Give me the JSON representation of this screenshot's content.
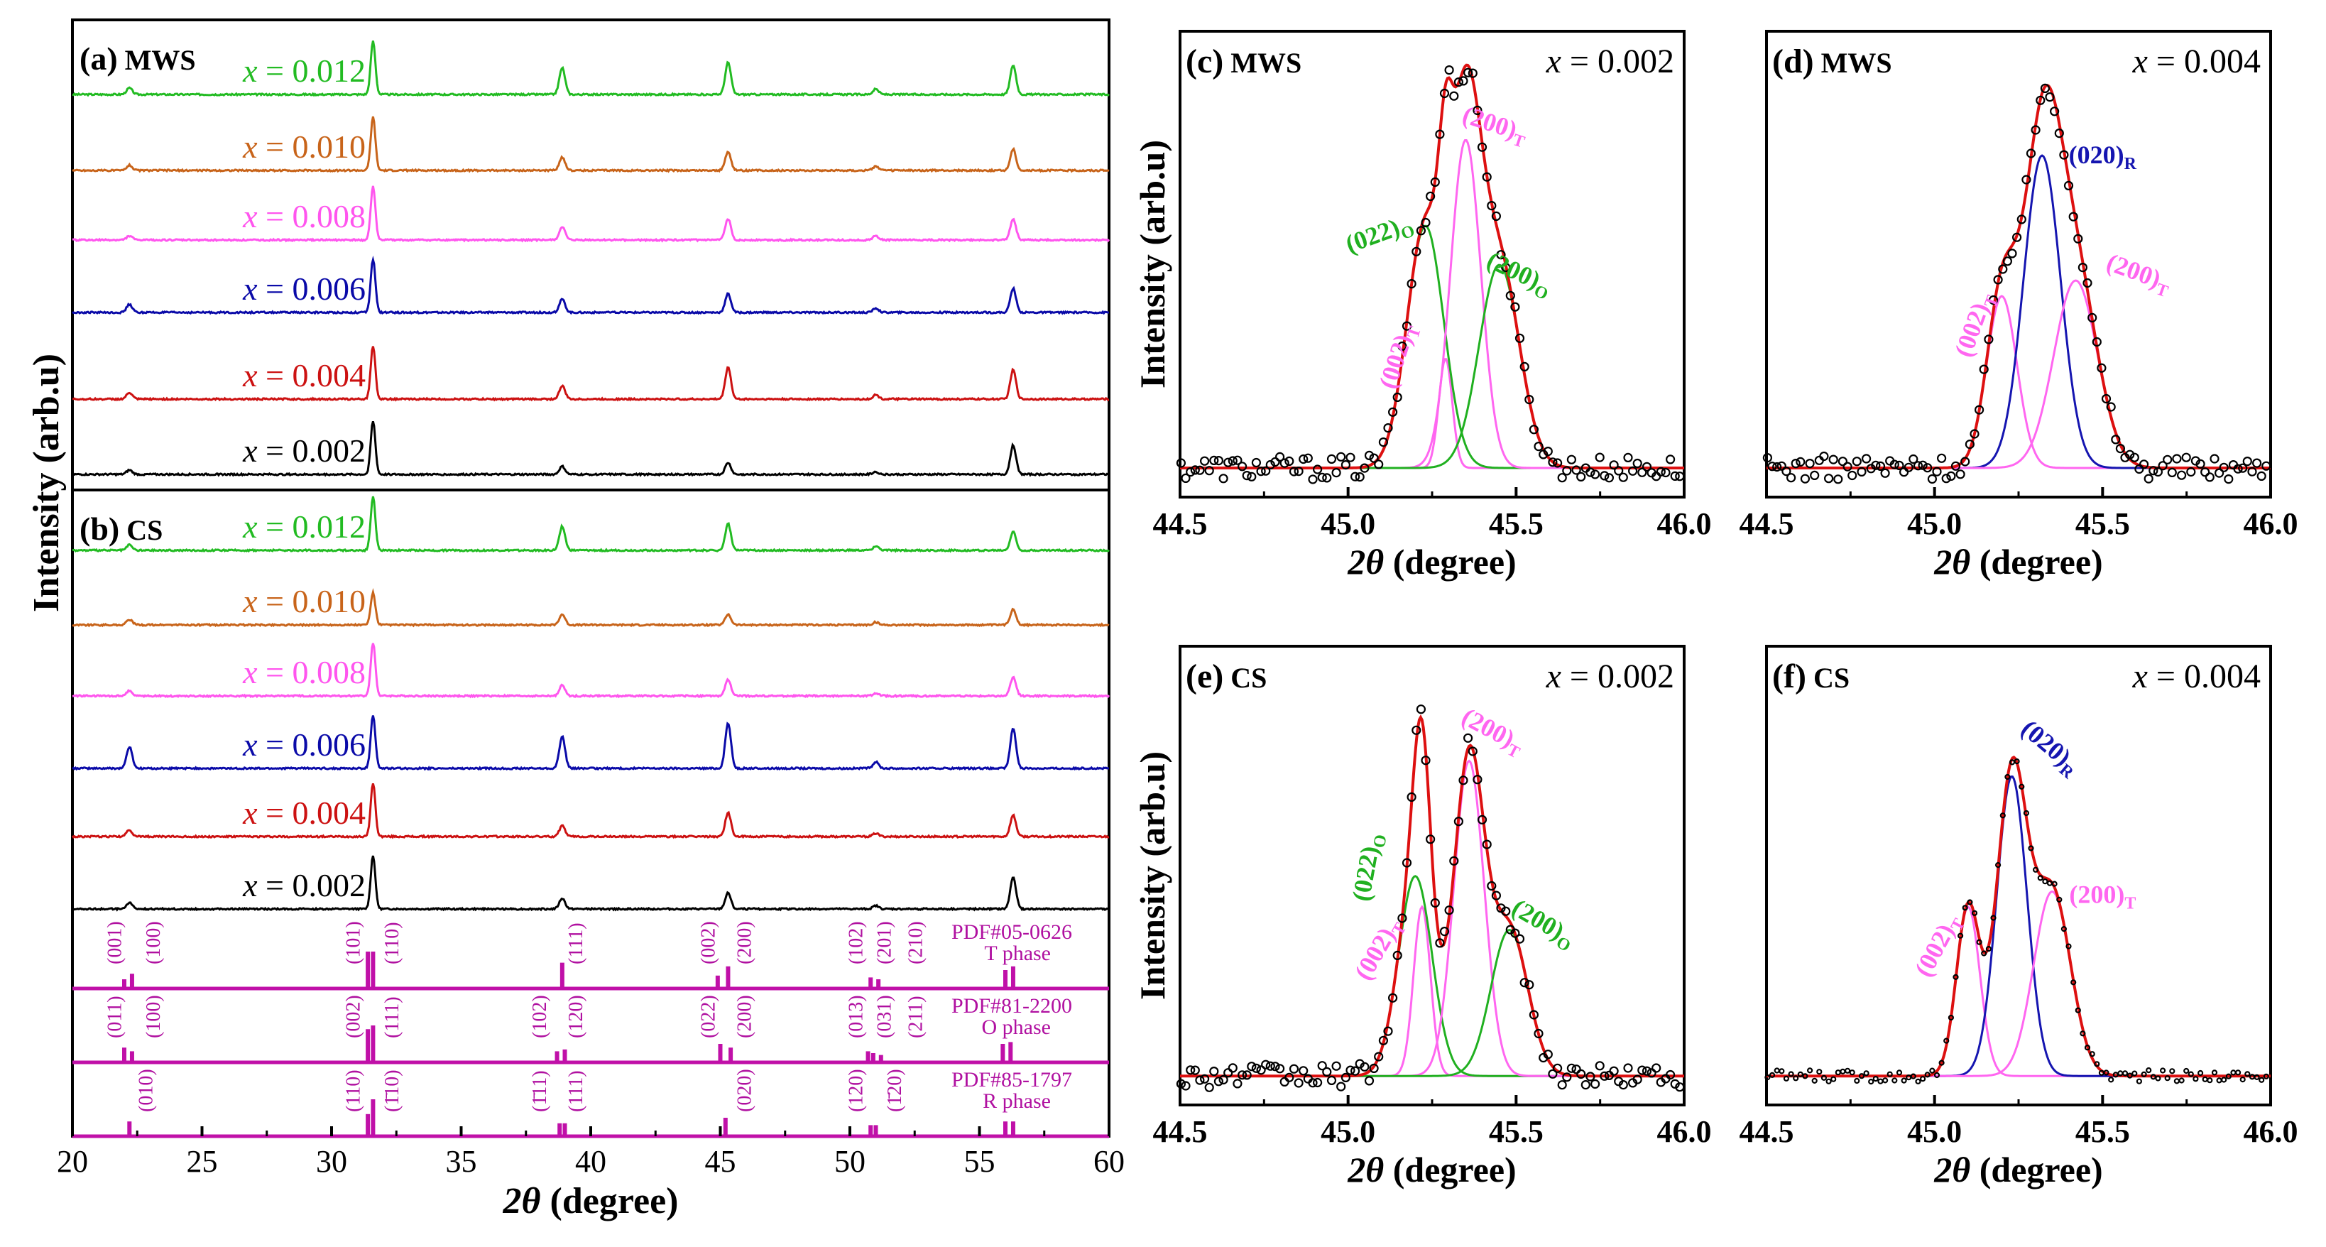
{
  "colors": {
    "black": "#000000",
    "red": "#cc1111",
    "blue": "#0a0aa8",
    "green": "#22bb22",
    "orange": "#c8641a",
    "magenta": "#ff55ee",
    "pdf": "#c010a8",
    "darkmag": "#b010a0",
    "fitred": "#dd1010",
    "fitblue": "#1515b0",
    "fitgreen": "#20b020",
    "fitpink": "#ff66f0"
  },
  "text": {
    "y_label_main": "Intensity (arb.u)",
    "x_label_2theta": "2θ",
    "x_label_unit": "(degree)",
    "x_equals": "x",
    "x_equals_sep": " = "
  },
  "chart_data": [
    {
      "id": "panel-ab",
      "type": "line",
      "title_a": "(a)",
      "label_a": "MWS",
      "title_b": "(b)",
      "label_b": "CS",
      "xlim": [
        20,
        60
      ],
      "xticks": [
        "20",
        "25",
        "30",
        "35",
        "40",
        "45",
        "50",
        "55",
        "60"
      ],
      "xlabel": "2θ (degree)",
      "ylabel": "Intensity (arb.u)",
      "peaks_positions": [
        22.2,
        31.6,
        38.9,
        45.3,
        51.0,
        56.3
      ],
      "series_mws": [
        {
          "name": "x = 0.012",
          "value": "0.012",
          "color": "green",
          "peaks": [
            0.12,
            1.0,
            0.5,
            0.6,
            0.1,
            0.55
          ]
        },
        {
          "name": "x = 0.010",
          "value": "0.010",
          "color": "orange",
          "peaks": [
            0.1,
            1.0,
            0.25,
            0.35,
            0.08,
            0.4
          ]
        },
        {
          "name": "x = 0.008",
          "value": "0.008",
          "color": "magenta",
          "peaks": [
            0.08,
            1.0,
            0.25,
            0.4,
            0.08,
            0.4
          ]
        },
        {
          "name": "x = 0.006",
          "value": "0.006",
          "color": "blue",
          "peaks": [
            0.15,
            1.0,
            0.25,
            0.35,
            0.08,
            0.45
          ]
        },
        {
          "name": "x = 0.004",
          "value": "0.004",
          "color": "red",
          "peaks": [
            0.12,
            1.0,
            0.25,
            0.6,
            0.08,
            0.55
          ]
        },
        {
          "name": "x = 0.002",
          "value": "0.002",
          "color": "black",
          "peaks": [
            0.08,
            1.0,
            0.15,
            0.22,
            0.05,
            0.55
          ]
        }
      ],
      "series_cs": [
        {
          "name": "x = 0.012",
          "value": "0.012",
          "color": "green",
          "peaks": [
            0.1,
            1.0,
            0.45,
            0.5,
            0.08,
            0.35
          ]
        },
        {
          "name": "x = 0.010",
          "value": "0.010",
          "color": "orange",
          "peaks": [
            0.1,
            0.6,
            0.2,
            0.2,
            0.05,
            0.3
          ]
        },
        {
          "name": "x = 0.008",
          "value": "0.008",
          "color": "magenta",
          "peaks": [
            0.1,
            1.0,
            0.2,
            0.3,
            0.05,
            0.35
          ]
        },
        {
          "name": "x = 0.006",
          "value": "0.006",
          "color": "blue",
          "peaks": [
            0.4,
            1.0,
            0.6,
            0.85,
            0.12,
            0.75
          ]
        },
        {
          "name": "x = 0.004",
          "value": "0.004",
          "color": "red",
          "peaks": [
            0.12,
            1.0,
            0.2,
            0.45,
            0.06,
            0.4
          ]
        },
        {
          "name": "x = 0.002",
          "value": "0.002",
          "color": "black",
          "peaks": [
            0.12,
            1.0,
            0.2,
            0.3,
            0.06,
            0.6
          ]
        }
      ],
      "ref_patterns": [
        {
          "pdf": "PDF#05-0626",
          "phase": "T phase",
          "lines": [
            {
              "x": 22.0,
              "h": 0.25
            },
            {
              "x": 22.3,
              "h": 0.4
            },
            {
              "x": 31.4,
              "h": 1.0
            },
            {
              "x": 31.6,
              "h": 1.0
            },
            {
              "x": 38.9,
              "h": 0.7
            },
            {
              "x": 44.9,
              "h": 0.35
            },
            {
              "x": 45.3,
              "h": 0.6
            },
            {
              "x": 50.8,
              "h": 0.3
            },
            {
              "x": 51.1,
              "h": 0.25
            },
            {
              "x": 56.0,
              "h": 0.5
            },
            {
              "x": 56.3,
              "h": 0.6
            }
          ],
          "hkl": [
            {
              "x": 21.7,
              "t": "(001)"
            },
            {
              "x": 23.2,
              "t": "(100)"
            },
            {
              "x": 30.9,
              "t": "(101)"
            },
            {
              "x": 32.4,
              "t": "(110)"
            },
            {
              "x": 39.5,
              "t": "(111)"
            },
            {
              "x": 44.6,
              "t": "(002)"
            },
            {
              "x": 46.0,
              "t": "(200)"
            },
            {
              "x": 50.3,
              "t": "(102)"
            },
            {
              "x": 51.4,
              "t": "(201)"
            },
            {
              "x": 52.6,
              "t": "(210)"
            }
          ]
        },
        {
          "pdf": "PDF#81-2200",
          "phase": "O phase",
          "lines": [
            {
              "x": 22.0,
              "h": 0.4
            },
            {
              "x": 22.3,
              "h": 0.3
            },
            {
              "x": 31.4,
              "h": 0.9
            },
            {
              "x": 31.6,
              "h": 1.0
            },
            {
              "x": 38.7,
              "h": 0.3
            },
            {
              "x": 39.0,
              "h": 0.35
            },
            {
              "x": 45.0,
              "h": 0.5
            },
            {
              "x": 45.4,
              "h": 0.4
            },
            {
              "x": 50.7,
              "h": 0.3
            },
            {
              "x": 50.9,
              "h": 0.25
            },
            {
              "x": 51.2,
              "h": 0.2
            },
            {
              "x": 55.9,
              "h": 0.5
            },
            {
              "x": 56.2,
              "h": 0.55
            }
          ],
          "hkl": [
            {
              "x": 21.7,
              "t": "(011)"
            },
            {
              "x": 23.2,
              "t": "(100)"
            },
            {
              "x": 30.9,
              "t": "(002)"
            },
            {
              "x": 32.4,
              "t": "(111)"
            },
            {
              "x": 38.1,
              "t": "(102)"
            },
            {
              "x": 39.5,
              "t": "(120)"
            },
            {
              "x": 44.6,
              "t": "(022)"
            },
            {
              "x": 46.0,
              "t": "(200)"
            },
            {
              "x": 50.3,
              "t": "(013)"
            },
            {
              "x": 51.4,
              "t": "(031)"
            },
            {
              "x": 52.6,
              "t": "(211)"
            }
          ]
        },
        {
          "pdf": "PDF#85-1797",
          "phase": "R phase",
          "lines": [
            {
              "x": 22.2,
              "h": 0.4
            },
            {
              "x": 31.4,
              "h": 0.6
            },
            {
              "x": 31.6,
              "h": 1.0
            },
            {
              "x": 38.8,
              "h": 0.35
            },
            {
              "x": 39.0,
              "h": 0.35
            },
            {
              "x": 45.2,
              "h": 0.5
            },
            {
              "x": 50.8,
              "h": 0.3
            },
            {
              "x": 51.0,
              "h": 0.3
            },
            {
              "x": 56.0,
              "h": 0.4
            },
            {
              "x": 56.3,
              "h": 0.4
            }
          ],
          "hkl": [
            {
              "x": 22.9,
              "t": "(010)"
            },
            {
              "x": 30.9,
              "t": "(110)"
            },
            {
              "x": 32.4,
              "t": "(1̄10)"
            },
            {
              "x": 38.1,
              "t": "(1̄11)"
            },
            {
              "x": 39.5,
              "t": "(111)"
            },
            {
              "x": 46.0,
              "t": "(020)"
            },
            {
              "x": 50.3,
              "t": "(120)"
            },
            {
              "x": 51.8,
              "t": "(1̄20)"
            }
          ]
        }
      ]
    },
    {
      "id": "panel-c",
      "type": "line",
      "letter": "(c)",
      "sample": "MWS",
      "xval": "0.002",
      "xlim": [
        44.5,
        46.0
      ],
      "xticks": [
        "44.5",
        "45.0",
        "45.5",
        "46.0"
      ],
      "xlabel": "2θ (degree)",
      "ylabel": "Intensity (arb.u)",
      "ymax": 1.12,
      "baseline": 0.02,
      "components": [
        {
          "label": "(002)",
          "sub": "T",
          "color": "fitpink",
          "center": 45.29,
          "amp": 0.28,
          "sigma": 0.02,
          "lx": 45.17,
          "ly": 0.3,
          "rot": -72
        },
        {
          "label": "(022)",
          "sub": "O",
          "color": "fitgreen",
          "center": 45.23,
          "amp": 0.62,
          "sigma": 0.055,
          "lx": 45.1,
          "ly": 0.6,
          "rot": -20
        },
        {
          "label": "(200)",
          "sub": "T",
          "color": "fitpink",
          "center": 45.35,
          "amp": 0.84,
          "sigma": 0.045,
          "lx": 45.43,
          "ly": 0.88,
          "rot": 18
        },
        {
          "label": "(200)",
          "sub": "O",
          "color": "fitgreen",
          "center": 45.45,
          "amp": 0.52,
          "sigma": 0.06,
          "lx": 45.5,
          "ly": 0.5,
          "rot": 25
        }
      ],
      "noise_amp": 0.03
    },
    {
      "id": "panel-d",
      "type": "line",
      "letter": "(d)",
      "sample": "MWS",
      "xval": "0.004",
      "xlim": [
        44.5,
        46.0
      ],
      "xticks": [
        "44.5",
        "45.0",
        "45.5",
        "46.0"
      ],
      "xlabel": "2θ (degree)",
      "ylabel": "",
      "ymax": 1.12,
      "baseline": 0.02,
      "components": [
        {
          "label": "(002)",
          "sub": "T",
          "color": "fitpink",
          "center": 45.2,
          "amp": 0.44,
          "sigma": 0.045,
          "lx": 45.14,
          "ly": 0.38,
          "rot": -70
        },
        {
          "label": "(020)",
          "sub": "R",
          "color": "fitblue",
          "center": 45.32,
          "amp": 0.8,
          "sigma": 0.055,
          "lx": 45.5,
          "ly": 0.8,
          "rot": 0
        },
        {
          "label": "(200)",
          "sub": "T",
          "color": "fitpink",
          "center": 45.42,
          "amp": 0.48,
          "sigma": 0.065,
          "lx": 45.6,
          "ly": 0.5,
          "rot": 20
        }
      ],
      "noise_amp": 0.03
    },
    {
      "id": "panel-e",
      "type": "line",
      "letter": "(e)",
      "sample": "CS",
      "xval": "0.002",
      "xlim": [
        44.5,
        46.0
      ],
      "xticks": [
        "44.5",
        "45.0",
        "45.5",
        "46.0"
      ],
      "xlabel": "2θ (degree)",
      "ylabel": "Intensity (arb.u)",
      "ymax": 1.12,
      "baseline": 0.02,
      "components": [
        {
          "label": "(002)",
          "sub": "T",
          "color": "fitpink",
          "center": 45.22,
          "amp": 0.44,
          "sigma": 0.025,
          "lx": 45.11,
          "ly": 0.34,
          "rot": -60
        },
        {
          "label": "(022)",
          "sub": "O",
          "color": "fitgreen",
          "center": 45.2,
          "amp": 0.52,
          "sigma": 0.05,
          "lx": 45.08,
          "ly": 0.56,
          "rot": -80
        },
        {
          "label": "(200)",
          "sub": "T",
          "color": "fitpink",
          "center": 45.36,
          "amp": 0.82,
          "sigma": 0.045,
          "lx": 45.42,
          "ly": 0.9,
          "rot": 28
        },
        {
          "label": "(200)",
          "sub": "O",
          "color": "fitgreen",
          "center": 45.48,
          "amp": 0.38,
          "sigma": 0.055,
          "lx": 45.57,
          "ly": 0.4,
          "rot": 30
        }
      ],
      "noise_amp": 0.03
    },
    {
      "id": "panel-f",
      "type": "line",
      "letter": "(f)",
      "sample": "CS",
      "xval": "0.004",
      "xlim": [
        44.5,
        46.0
      ],
      "xticks": [
        "44.5",
        "45.0",
        "45.5",
        "46.0"
      ],
      "xlabel": "2θ (degree)",
      "ylabel": "",
      "ymax": 1.12,
      "baseline": 0.02,
      "components": [
        {
          "label": "(002)",
          "sub": "T",
          "color": "fitpink",
          "center": 45.1,
          "amp": 0.44,
          "sigma": 0.035,
          "lx": 45.03,
          "ly": 0.35,
          "rot": -62
        },
        {
          "label": "(020)",
          "sub": "R",
          "color": "fitblue",
          "center": 45.23,
          "amp": 0.78,
          "sigma": 0.045,
          "lx": 45.33,
          "ly": 0.86,
          "rot": 40
        },
        {
          "label": "(200)",
          "sub": "T",
          "color": "fitpink",
          "center": 45.35,
          "amp": 0.48,
          "sigma": 0.055,
          "lx": 45.5,
          "ly": 0.47,
          "rot": 0
        }
      ],
      "noise_amp": 0.015
    }
  ]
}
